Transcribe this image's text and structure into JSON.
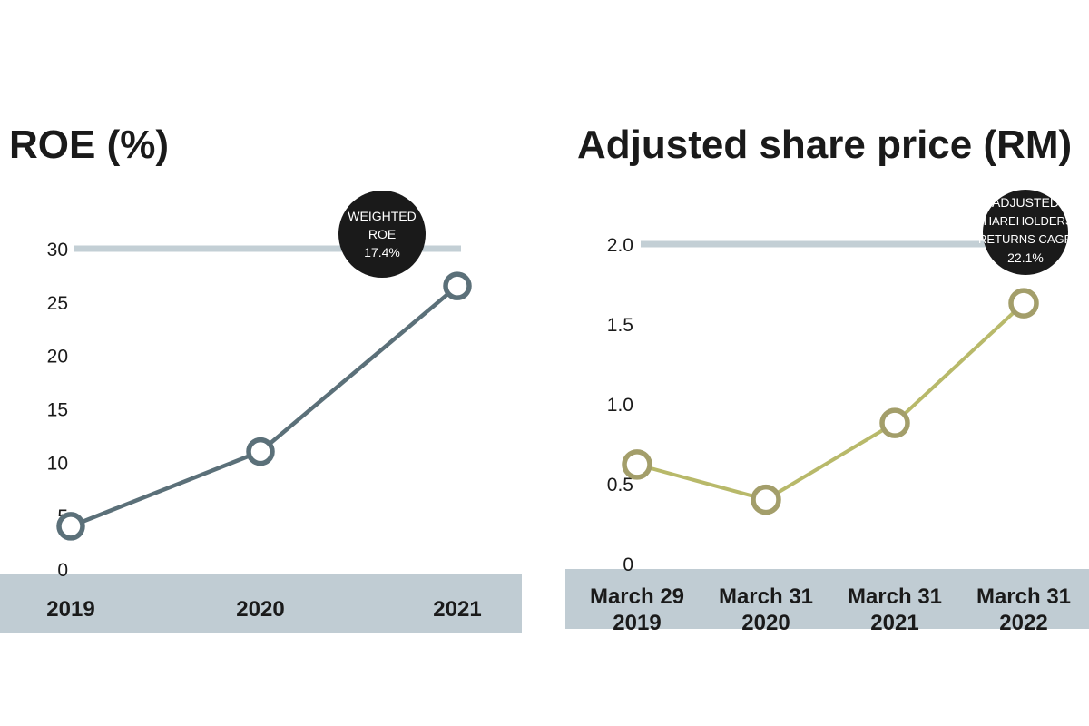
{
  "colors": {
    "background": "#ffffff",
    "band": "#c0ccd3",
    "reference_line": "#c3cfd5",
    "roe_series": "#5b7079",
    "price_series": "#b8b96a",
    "price_marker": "#a39e6a",
    "badge": "#1a1a1a",
    "text": "#1a1a1a"
  },
  "chart_data": [
    {
      "type": "line",
      "title": "ROE (%)",
      "categories": [
        "2019",
        "2020",
        "2021"
      ],
      "series": [
        {
          "values": [
            4,
            11,
            26.5
          ]
        }
      ],
      "yticks": [
        "0",
        "5",
        "10",
        "15",
        "20",
        "25",
        "30"
      ],
      "ylim": [
        0,
        30
      ],
      "reference_line": 30,
      "badge": [
        "WEIGHTED",
        "ROE",
        "17.4%"
      ],
      "grid": false
    },
    {
      "type": "line",
      "title": "Adjusted share price (RM)",
      "categories": [
        [
          "March 29",
          "2019"
        ],
        [
          "March 31",
          "2020"
        ],
        [
          "March 31",
          "2021"
        ],
        [
          "March 31",
          "2022"
        ]
      ],
      "series": [
        {
          "values": [
            0.62,
            0.4,
            0.88,
            1.63
          ]
        }
      ],
      "yticks": [
        "0",
        "0.5",
        "1.0",
        "1.5",
        "2.0"
      ],
      "ylim": [
        0,
        2.0
      ],
      "reference_line": 2.0,
      "badge": [
        "ADJUSTED",
        "SHAREHOLDERS'",
        "RETURNS CAGR",
        "22.1%"
      ],
      "grid": false
    }
  ]
}
